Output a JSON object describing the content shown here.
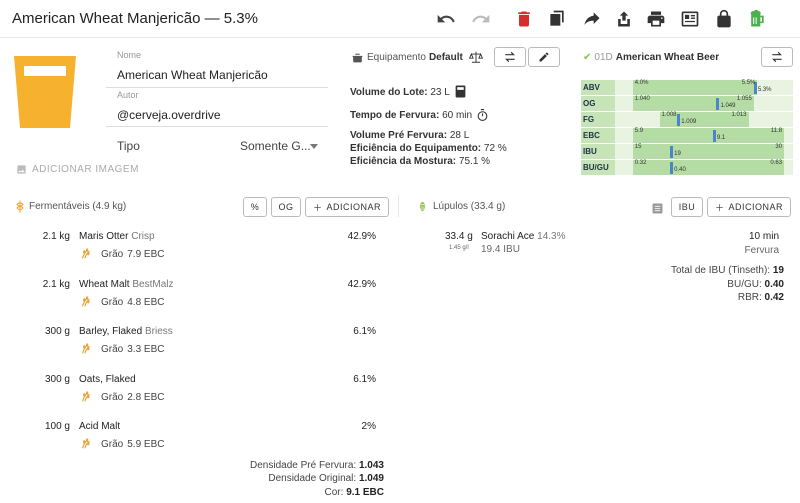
{
  "title": "American Wheat Manjericão — 5.3%",
  "toolbar_icons": [
    "undo-icon",
    "redo-icon",
    "delete-icon",
    "copy-icon",
    "share-icon",
    "export-icon",
    "print-icon",
    "newspaper-icon",
    "lock-icon",
    "beer-icon"
  ],
  "recipe": {
    "name_label": "Nome",
    "name_value": "American Wheat Manjericão",
    "author_label": "Autor",
    "author_value": "@cerveja.overdrive",
    "type_label": "Tipo",
    "type_value": "Somente G...",
    "add_image": "ADICIONAR IMAGEM",
    "glass_color": "#F6B12E"
  },
  "equipment": {
    "header_label": "Equipamento",
    "header_name": "Default",
    "batch_label": "Volume do Lote:",
    "batch_value": "23 L",
    "boil_label": "Tempo de Fervura:",
    "boil_value": "60 min",
    "preboil_label": "Volume Pré Fervura:",
    "preboil_value": "28 L",
    "efficiency_label": "Eficiência do Equipamento:",
    "efficiency_value": "72 %",
    "mash_eff_label": "Eficiência da Mostura:",
    "mash_eff_value": "75.1 %"
  },
  "style": {
    "code": "01D",
    "name": "American Wheat Beer",
    "bars": [
      {
        "label": "ABV",
        "lo": "4.0%",
        "hi": "5.5%",
        "val": "5.3%",
        "lo_frac": 0.1,
        "hi_frac": 0.8,
        "val_frac": 0.78
      },
      {
        "label": "OG",
        "lo": "1.040",
        "hi": "1.055",
        "val": "1.049",
        "lo_frac": 0.1,
        "hi_frac": 0.78,
        "val_frac": 0.57
      },
      {
        "label": "FG",
        "lo": "1.008",
        "hi": "1.013",
        "val": "1.009",
        "lo_frac": 0.25,
        "hi_frac": 0.75,
        "val_frac": 0.35
      },
      {
        "label": "EBC",
        "lo": "5.9",
        "hi": "11.8",
        "val": "9.1",
        "lo_frac": 0.1,
        "hi_frac": 0.95,
        "val_frac": 0.55
      },
      {
        "label": "IBU",
        "lo": "15",
        "hi": "30",
        "val": "19",
        "lo_frac": 0.1,
        "hi_frac": 0.95,
        "val_frac": 0.31
      },
      {
        "label": "BU/GU",
        "lo": "0.32",
        "hi": "0.63",
        "val": "0.40",
        "lo_frac": 0.1,
        "hi_frac": 0.95,
        "val_frac": 0.31
      }
    ]
  },
  "fermentables": {
    "header": "Fermentáveis (4.9 kg)",
    "btn_pct": "%",
    "btn_og": "OG",
    "btn_add": "ADICIONAR",
    "items": [
      {
        "amount": "2.1 kg",
        "name": "Maris Otter",
        "supplier": "Crisp",
        "pct": "42.9%",
        "type": "Grão",
        "color": "7.9 EBC"
      },
      {
        "amount": "2.1 kg",
        "name": "Wheat Malt",
        "supplier": "BestMalz",
        "pct": "42.9%",
        "type": "Grão",
        "color": "4.8 EBC"
      },
      {
        "amount": "300 g",
        "name": "Barley, Flaked",
        "supplier": "Briess",
        "pct": "6.1%",
        "type": "Grão",
        "color": "3.3 EBC"
      },
      {
        "amount": "300 g",
        "name": "Oats, Flaked",
        "supplier": "",
        "pct": "6.1%",
        "type": "Grão",
        "color": "2.8 EBC"
      },
      {
        "amount": "100 g",
        "name": "Acid Malt",
        "supplier": "",
        "pct": "2%",
        "type": "Grão",
        "color": "5.9 EBC"
      }
    ],
    "preboil_label": "Densidade Pré Fervura:",
    "preboil_value": "1.043",
    "og_label": "Densidade Original:",
    "og_value": "1.049",
    "color_label": "Cor:",
    "color_value": "9.1 EBC"
  },
  "hops": {
    "header": "Lúpulos (33.4 g)",
    "btn_ibu": "IBU",
    "btn_add": "ADICIONAR",
    "items": [
      {
        "amount": "33.4 g",
        "rate": "1.45 g/l",
        "name": "Sorachi Ace",
        "alpha": "14.3%",
        "ibu": "19.4 IBU",
        "time": "10 min",
        "use": "Fervura"
      }
    ],
    "total_ibu_label": "Total de IBU (Tinseth):",
    "total_ibu_value": "19",
    "bugu_label": "BU/GU:",
    "bugu_value": "0.40",
    "rbr_label": "RBR:",
    "rbr_value": "0.42"
  }
}
